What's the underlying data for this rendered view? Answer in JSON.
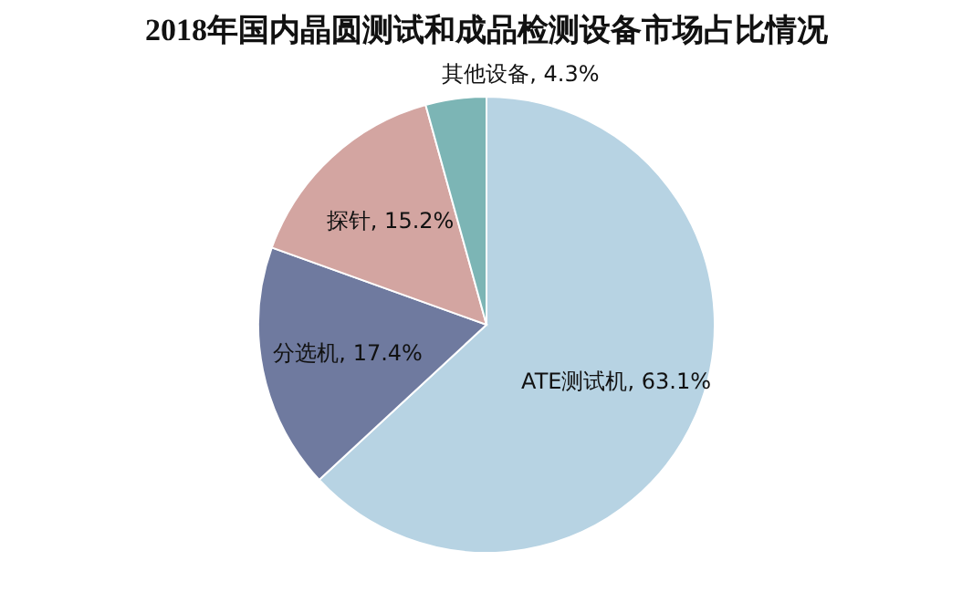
{
  "chart_data": {
    "type": "pie",
    "title": "2018年国内晶圆测试和成品检测设备市场占比情况",
    "categories": [
      "ATE测试机",
      "分选机",
      "探针",
      "其他设备"
    ],
    "values": [
      63.1,
      17.4,
      15.2,
      4.3
    ],
    "value_labels": [
      "63.1%",
      "17.4%",
      "15.2%",
      "4.3%"
    ],
    "colors": [
      "#b7d3e3",
      "#6f7a9f",
      "#d3a5a1",
      "#7cb5b5"
    ],
    "legend": false
  }
}
